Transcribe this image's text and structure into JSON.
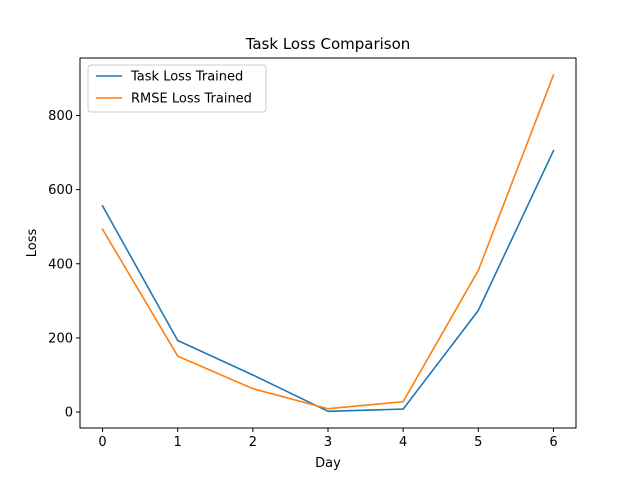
{
  "chart_data": {
    "type": "line",
    "title": "Task Loss Comparison",
    "xlabel": "Day",
    "ylabel": "Loss",
    "x": [
      0,
      1,
      2,
      3,
      4,
      5,
      6
    ],
    "xticks": [
      0,
      1,
      2,
      3,
      4,
      5,
      6
    ],
    "yticks": [
      0,
      200,
      400,
      600,
      800
    ],
    "xlim": [
      -0.3,
      6.3
    ],
    "ylim": [
      -43,
      955
    ],
    "grid": false,
    "legend_position": "upper-left",
    "series": [
      {
        "name": "Task Loss Trained",
        "color": "#1f77b4",
        "values": [
          556,
          193,
          100,
          2,
          8,
          274,
          705
        ]
      },
      {
        "name": "RMSE Loss Trained",
        "color": "#ff7f0e",
        "values": [
          493,
          151,
          63,
          9,
          28,
          382,
          909
        ]
      }
    ]
  }
}
